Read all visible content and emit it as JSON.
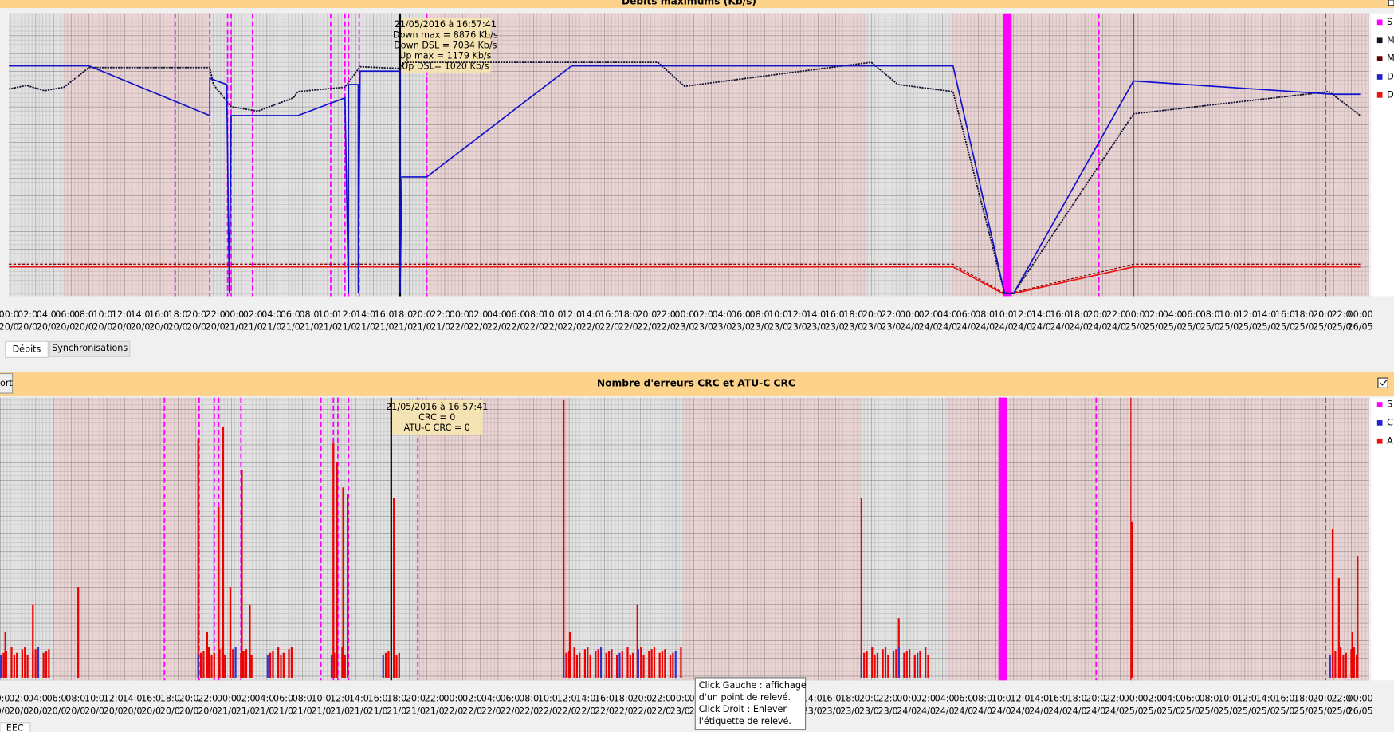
{
  "top_chart": {
    "title": "Débits maximums (Kb/s)",
    "legend": [
      "S",
      "M",
      "M",
      "D",
      "D"
    ],
    "tooltip": [
      "21/05/2016 à 16:57:41",
      "Down max = 8876 Kb/s",
      "Down DSL = 7034 Kb/s",
      "Up max = 1179 Kb/s",
      "Up DSL= 1020 Kb/s"
    ]
  },
  "tabs": [
    "Débits",
    "Synchronisations"
  ],
  "bottom_chart": {
    "button": "ort",
    "title": "Nombre d'erreurs CRC et ATU-C CRC",
    "legend": [
      "S",
      "C",
      "A"
    ],
    "tooltip": [
      "21/05/2016 à 16:57:41",
      "CRC = 0",
      "ATU-C CRC = 0"
    ]
  },
  "help_tooltip": [
    "Click Gauche : affichage",
    "d'un point de relevé.",
    "Click Droit : Enlever",
    "l'étiquette de relevé."
  ],
  "bottom_tab": "EEC",
  "x_axis": {
    "times": [
      "00:0",
      "02:0",
      "04:0",
      "06:0",
      "08:0",
      "10:0",
      "12:0",
      "14:0",
      "16:0",
      "18:0",
      "20:0",
      "22:0",
      "00:0",
      "02:0",
      "04:0",
      "06:0",
      "08:0",
      "10:0",
      "12:0",
      "14:0",
      "16:0",
      "18:0",
      "20:0",
      "22:0",
      "00:0",
      "02:0",
      "04:0",
      "06:0",
      "08:0",
      "10:0",
      "12:0",
      "14:0",
      "16:0",
      "18:0",
      "20:0",
      "22:0",
      "00:0",
      "02:0",
      "04:0",
      "06:0",
      "08:0",
      "10:0",
      "12:0",
      "14:0",
      "16:0",
      "18:0",
      "20:0",
      "22:0",
      "00:0",
      "02:0",
      "04:0",
      "06:0",
      "08:0",
      "10:0",
      "12:0",
      "14:0",
      "16:0",
      "18:0",
      "20:0",
      "22:0",
      "00:0",
      "02:0",
      "04:0",
      "06:0",
      "08:0",
      "10:0",
      "12:0",
      "14:0",
      "16:0",
      "18:0",
      "20:0",
      "22:0",
      "00:00"
    ],
    "dates": [
      "20/0",
      "20/0",
      "20/0",
      "20/0",
      "20/0",
      "20/0",
      "20/0",
      "20/0",
      "20/0",
      "20/0",
      "20/0",
      "20/0",
      "21/0",
      "21/0",
      "21/0",
      "21/0",
      "21/0",
      "21/0",
      "21/0",
      "21/0",
      "21/0",
      "21/0",
      "21/0",
      "21/0",
      "22/0",
      "22/0",
      "22/0",
      "22/0",
      "22/0",
      "22/0",
      "22/0",
      "22/0",
      "22/0",
      "22/0",
      "22/0",
      "22/0",
      "23/0",
      "23/0",
      "23/0",
      "23/0",
      "23/0",
      "23/0",
      "23/0",
      "23/0",
      "23/0",
      "23/0",
      "23/0",
      "23/0",
      "24/0",
      "24/0",
      "24/0",
      "24/0",
      "24/0",
      "24/0",
      "24/0",
      "24/0",
      "24/0",
      "24/0",
      "24/0",
      "24/0",
      "25/0",
      "25/0",
      "25/0",
      "25/0",
      "25/0",
      "25/0",
      "25/0",
      "25/0",
      "25/0",
      "25/0",
      "25/0",
      "25/0",
      "26/05"
    ]
  }
}
